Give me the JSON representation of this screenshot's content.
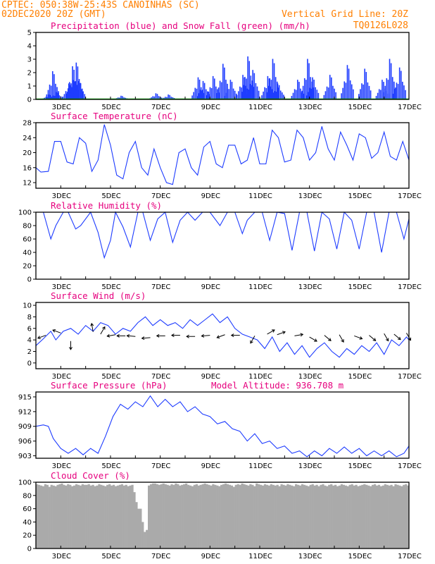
{
  "header": {
    "line1": "CPTEC:   050:38W-25:43S  CANOINHAS (SC)",
    "line2": "02DEC2020 20Z (GMT)",
    "grid_note": "Vertical Grid Line: 20Z",
    "run_code": "TQ0126L028"
  },
  "colors": {
    "header": "#ff7f00",
    "title": "#e6007e",
    "line": "#1e3cff",
    "precip": "#1e3cff",
    "snow": "#00b000",
    "cloud": "#aaaaaa"
  },
  "days": [
    "3DEC",
    "5DEC",
    "7DEC",
    "9DEC",
    "11DEC",
    "13DEC",
    "15DEC",
    "17DEC"
  ],
  "chart_data": [
    {
      "type": "bar",
      "title": "Precipitation (blue) and Snow Fall (green) (mm/h)",
      "ylim": [
        0,
        5
      ],
      "yticks": [
        0,
        1,
        2,
        3,
        4,
        5
      ],
      "series": [
        {
          "name": "Precipitation",
          "points": [
            [
              2.5,
              0.4
            ],
            [
              2.65,
              2.3
            ],
            [
              2.8,
              0.6
            ],
            [
              3.3,
              1.3
            ],
            [
              3.45,
              2.7
            ],
            [
              3.6,
              3.0
            ],
            [
              3.7,
              1.5
            ],
            [
              5.4,
              0.3
            ],
            [
              6.8,
              0.5
            ],
            [
              7.3,
              0.4
            ],
            [
              8.5,
              1.8
            ],
            [
              8.7,
              1.5
            ],
            [
              9.1,
              1.9
            ],
            [
              9.5,
              2.9
            ],
            [
              9.8,
              1.6
            ],
            [
              10.3,
              2.0
            ],
            [
              10.5,
              3.5
            ],
            [
              10.7,
              2.4
            ],
            [
              11.3,
              1.9
            ],
            [
              11.5,
              3.3
            ],
            [
              11.7,
              1.3
            ],
            [
              12.5,
              1.6
            ],
            [
              12.9,
              3.3
            ],
            [
              13.1,
              1.8
            ],
            [
              13.8,
              2.0
            ],
            [
              14.5,
              2.8
            ],
            [
              15.2,
              2.5
            ],
            [
              15.9,
              1.6
            ],
            [
              16.2,
              3.3
            ],
            [
              16.6,
              2.6
            ]
          ]
        },
        {
          "name": "Snow Fall",
          "points": []
        }
      ]
    },
    {
      "type": "line",
      "title": "Surface Temperature (nC)",
      "ylim": [
        10.5,
        28
      ],
      "yticks": [
        12,
        16,
        20,
        24,
        28
      ],
      "x": [
        2.0,
        2.2,
        2.5,
        2.75,
        3.0,
        3.25,
        3.5,
        3.75,
        4.0,
        4.25,
        4.5,
        4.75,
        5.0,
        5.25,
        5.5,
        5.75,
        6.0,
        6.25,
        6.5,
        6.75,
        7.0,
        7.25,
        7.5,
        7.75,
        8.0,
        8.25,
        8.5,
        8.75,
        9.0,
        9.25,
        9.5,
        9.75,
        10.0,
        10.25,
        10.5,
        10.75,
        11.0,
        11.25,
        11.5,
        11.75,
        12.0,
        12.25,
        12.5,
        12.75,
        13.0,
        13.25,
        13.5,
        13.75,
        14.0,
        14.25,
        14.5,
        14.75,
        15.0,
        15.25,
        15.5,
        15.75,
        16.0,
        16.25,
        16.5,
        16.75,
        17.0
      ],
      "values": [
        16,
        14.8,
        15,
        23,
        23,
        17.5,
        17,
        24,
        22.5,
        15,
        18,
        27.5,
        22,
        14,
        13,
        20,
        23,
        16,
        14,
        21,
        16,
        12,
        11.5,
        20,
        21,
        16,
        14,
        21.5,
        23,
        17,
        16,
        22,
        22,
        17,
        18,
        24,
        17,
        17,
        26,
        24,
        17.5,
        18,
        26,
        24,
        18,
        20,
        27,
        21,
        18,
        25.5,
        22,
        18,
        25,
        24,
        18.5,
        20,
        25.5,
        19,
        18,
        23,
        18
      ]
    },
    {
      "type": "line",
      "title": "Relative Humidity (%)",
      "ylim": [
        0,
        100
      ],
      "yticks": [
        0,
        20,
        40,
        60,
        80,
        100
      ],
      "x": [
        2.0,
        2.3,
        2.6,
        2.8,
        3.1,
        3.3,
        3.6,
        3.8,
        4.2,
        4.5,
        4.75,
        5.0,
        5.2,
        5.5,
        5.8,
        6.1,
        6.3,
        6.6,
        6.9,
        7.2,
        7.5,
        7.8,
        8.1,
        8.4,
        8.7,
        9.0,
        9.4,
        9.7,
        10.0,
        10.3,
        10.5,
        10.8,
        11.1,
        11.4,
        11.7,
        12.0,
        12.3,
        12.6,
        12.9,
        13.2,
        13.5,
        13.8,
        14.1,
        14.4,
        14.7,
        15.0,
        15.3,
        15.6,
        15.9,
        16.2,
        16.5,
        16.8,
        17.0
      ],
      "values": [
        100,
        100,
        60,
        80,
        100,
        100,
        75,
        80,
        100,
        70,
        32,
        58,
        100,
        78,
        48,
        100,
        100,
        58,
        90,
        100,
        55,
        88,
        100,
        88,
        100,
        100,
        80,
        100,
        100,
        68,
        88,
        100,
        100,
        58,
        100,
        98,
        43,
        100,
        100,
        42,
        100,
        90,
        45,
        100,
        88,
        45,
        100,
        100,
        40,
        100,
        100,
        60,
        90
      ]
    },
    {
      "type": "line",
      "title": "Surface Wind (m/s)",
      "ylim": [
        -1,
        10.5
      ],
      "yticks": [
        0,
        2,
        4,
        6,
        8,
        10
      ],
      "x": [
        2.0,
        2.3,
        2.6,
        2.8,
        3.1,
        3.4,
        3.7,
        4.0,
        4.3,
        4.6,
        4.9,
        5.2,
        5.5,
        5.8,
        6.1,
        6.4,
        6.7,
        7.0,
        7.3,
        7.6,
        7.9,
        8.2,
        8.5,
        8.8,
        9.1,
        9.4,
        9.7,
        10.0,
        10.3,
        10.6,
        10.9,
        11.2,
        11.5,
        11.8,
        12.1,
        12.4,
        12.7,
        13.0,
        13.3,
        13.6,
        13.9,
        14.2,
        14.5,
        14.8,
        15.1,
        15.4,
        15.7,
        16.0,
        16.3,
        16.6,
        16.9,
        17.0
      ],
      "values": [
        3.0,
        4.2,
        5.5,
        4.0,
        5.5,
        6.0,
        5.0,
        6.5,
        5.5,
        7.0,
        6.5,
        5.0,
        6.0,
        5.5,
        7.0,
        8.0,
        6.5,
        7.5,
        6.5,
        7.0,
        6.0,
        7.5,
        6.5,
        7.5,
        8.5,
        7.0,
        8.0,
        6.0,
        5.0,
        4.5,
        4.0,
        2.5,
        4.5,
        2.0,
        3.5,
        1.5,
        3.0,
        1.0,
        2.5,
        3.5,
        2.0,
        1.0,
        2.5,
        1.5,
        3.0,
        2.0,
        3.5,
        1.5,
        4.0,
        3.0,
        4.5,
        4.0
      ]
    },
    {
      "type": "line",
      "title": "Surface Pressure (hPa)",
      "annotation": "Model Altitude: 936.708 m",
      "ylim": [
        902.5,
        916
      ],
      "yticks": [
        903,
        906,
        909,
        912,
        915
      ],
      "x": [
        2.0,
        2.3,
        2.5,
        2.7,
        3.0,
        3.3,
        3.6,
        3.9,
        4.2,
        4.5,
        4.8,
        5.1,
        5.4,
        5.7,
        6.0,
        6.3,
        6.6,
        6.9,
        7.2,
        7.5,
        7.8,
        8.1,
        8.4,
        8.7,
        9.0,
        9.3,
        9.6,
        9.9,
        10.2,
        10.5,
        10.8,
        11.1,
        11.4,
        11.7,
        12.0,
        12.3,
        12.6,
        12.9,
        13.2,
        13.5,
        13.8,
        14.1,
        14.4,
        14.7,
        15.0,
        15.3,
        15.6,
        15.9,
        16.2,
        16.5,
        16.8,
        17.0
      ],
      "values": [
        909,
        909.3,
        909,
        906.5,
        904.5,
        903.5,
        904.5,
        903.2,
        904.5,
        903.5,
        907,
        911,
        913.5,
        912.5,
        914,
        913,
        915.2,
        913,
        914.5,
        913,
        914,
        912,
        913,
        911.5,
        911,
        909.5,
        910,
        908.5,
        908,
        906,
        907.5,
        905.5,
        906,
        904.5,
        905,
        903.5,
        904,
        902.8,
        904,
        903,
        904.5,
        903.5,
        904.8,
        903.5,
        904.5,
        903,
        904,
        903,
        904,
        902.8,
        903.5,
        905
      ]
    },
    {
      "type": "bar",
      "title": "Cloud Cover (%)",
      "ylim": [
        0,
        100
      ],
      "yticks": [
        0,
        20,
        40,
        60,
        80,
        100
      ],
      "x_start": 2.0,
      "x_end": 17.0,
      "n": 180,
      "values": [
        97,
        96,
        95,
        94,
        97,
        96,
        93,
        96,
        95,
        94,
        96,
        97,
        98,
        96,
        95,
        97,
        96,
        94,
        95,
        97,
        96,
        95,
        97,
        96,
        96,
        97,
        95,
        96,
        94,
        95,
        97,
        96,
        95,
        94,
        96,
        97,
        95,
        96,
        94,
        95,
        96,
        97,
        95,
        96,
        94,
        95,
        96,
        85,
        70,
        60,
        60,
        40,
        25,
        28,
        95,
        97,
        98,
        98,
        97,
        96,
        97,
        98,
        97,
        96,
        95,
        97,
        96,
        98,
        97,
        95,
        96,
        97,
        98,
        96,
        95,
        94,
        96,
        97,
        95,
        96,
        97,
        98,
        97,
        96,
        95,
        97,
        96,
        95,
        94,
        96,
        97,
        98,
        97,
        96,
        95,
        93,
        96,
        97,
        96,
        98,
        97,
        96,
        95,
        97,
        96,
        94,
        98,
        97,
        96,
        95,
        97,
        96,
        95,
        97,
        96,
        95,
        96,
        94,
        97,
        96,
        95,
        97,
        96,
        95,
        94,
        97,
        96,
        95,
        97,
        96,
        95,
        94,
        96,
        97,
        95,
        96,
        94,
        96,
        97,
        95,
        94,
        96,
        97,
        95,
        96,
        94,
        95,
        97,
        96,
        95,
        94,
        96,
        97,
        95,
        96,
        94,
        95,
        96,
        97,
        96,
        95,
        94,
        96,
        97,
        95,
        96,
        94,
        95,
        97,
        96,
        95,
        96,
        94,
        97,
        96,
        95,
        94,
        96,
        97,
        95
      ]
    }
  ]
}
